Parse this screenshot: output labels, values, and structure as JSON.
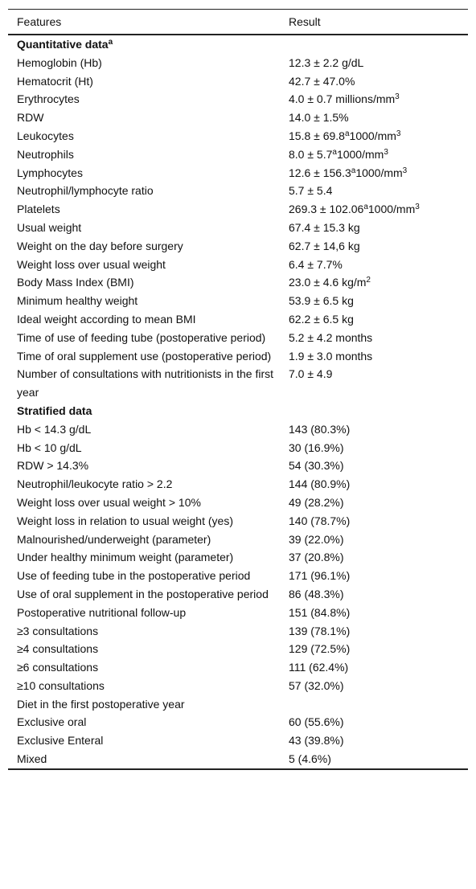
{
  "table": {
    "header": [
      "Features",
      "Result"
    ],
    "rows": [
      {
        "section": [
          "Quantitative data",
          {
            "sup": "a"
          }
        ]
      },
      [
        "Hemoglobin (Hb)",
        "12.3 ± 2.2 g/dL"
      ],
      [
        "Hematocrit (Ht)",
        "42.7 ± 47.0%"
      ],
      [
        "Erythrocytes",
        [
          "4.0 ± 0.7 millions/mm",
          {
            "sup": "3"
          }
        ]
      ],
      [
        "RDW",
        "14.0 ± 1.5%"
      ],
      [
        "Leukocytes",
        [
          "15.8 ± 69.8",
          {
            "sup": "a"
          },
          "1000/mm",
          {
            "sup": "3"
          }
        ]
      ],
      [
        "Neutrophils",
        [
          "8.0 ± 5.7",
          {
            "sup": "a"
          },
          "1000/mm",
          {
            "sup": "3"
          }
        ]
      ],
      [
        "Lymphocytes",
        [
          "12.6 ± 156.3",
          {
            "sup": "a"
          },
          "1000/mm",
          {
            "sup": "3"
          }
        ]
      ],
      [
        "Neutrophil/lymphocyte ratio",
        "5.7 ± 5.4"
      ],
      [
        "Platelets",
        [
          "269.3 ± 102.06",
          {
            "sup": "a"
          },
          "1000/mm",
          {
            "sup": "3"
          }
        ]
      ],
      [
        "Usual weight",
        "67.4 ± 15.3 kg"
      ],
      [
        "Weight on the day before surgery",
        "62.7 ± 14,6 kg"
      ],
      [
        "Weight loss over usual weight",
        "6.4 ± 7.7%"
      ],
      [
        "Body Mass Index (BMI)",
        [
          "23.0 ± 4.6 kg/m",
          {
            "sup": "2"
          }
        ]
      ],
      [
        "Minimum healthy weight",
        "53.9 ± 6.5 kg"
      ],
      [
        "Ideal weight according to mean BMI",
        "62.2 ± 6.5 kg"
      ],
      [
        "Time of use of feeding tube (postoperative period)",
        "5.2 ± 4.2 months"
      ],
      [
        "Time of oral supplement use (postoperative period)",
        "1.9 ± 3.0 months"
      ],
      [
        "Number of consultations with nutritionists in the first year",
        "7.0 ± 4.9"
      ],
      {
        "section": [
          "Stratified data"
        ]
      },
      [
        "Hb < 14.3 g/dL",
        "143 (80.3%)"
      ],
      [
        "Hb < 10 g/dL",
        "30 (16.9%)"
      ],
      [
        "RDW > 14.3%",
        "54 (30.3%)"
      ],
      [
        "Neutrophil/leukocyte ratio > 2.2",
        "144 (80.9%)"
      ],
      [
        "Weight loss over usual weight > 10%",
        "49 (28.2%)"
      ],
      [
        "Weight loss in relation to usual weight (yes)",
        "140 (78.7%)"
      ],
      [
        "Malnourished/underweight (parameter)",
        "39 (22.0%)"
      ],
      [
        "Under healthy minimum weight (parameter)",
        "37 (20.8%)"
      ],
      [
        "Use of feeding tube in the postoperative period",
        "171 (96.1%)"
      ],
      [
        "Use of oral supplement in the postoperative period",
        "86 (48.3%)"
      ],
      [
        "Postoperative nutritional follow-up",
        "151 (84.8%)"
      ],
      [
        "≥3 consultations",
        "139 (78.1%)"
      ],
      [
        "≥4 consultations",
        "129 (72.5%)"
      ],
      [
        "≥6 consultations",
        "111 (62.4%)"
      ],
      [
        "≥10 consultations",
        "57 (32.0%)"
      ],
      [
        "Diet in the first postoperative year"
      ],
      [
        "Exclusive oral",
        "60 (55.6%)"
      ],
      [
        "Exclusive Enteral",
        "43 (39.8%)"
      ],
      [
        "Mixed",
        "5 (4.6%)"
      ]
    ]
  }
}
